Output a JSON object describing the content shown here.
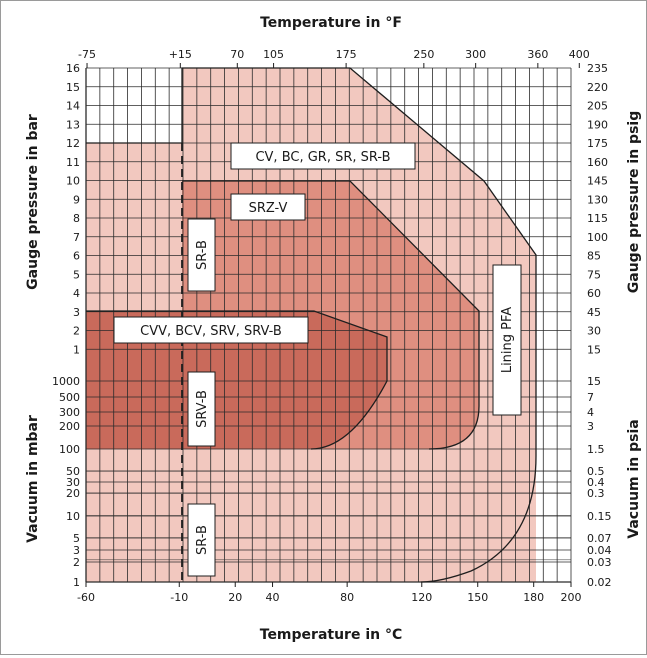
{
  "chart_data": {
    "type": "area",
    "top_axis_title": "Temperature in °F",
    "bottom_axis_title": "Temperature in °C",
    "left_upper_axis_title": "Gauge pressure in bar",
    "left_lower_axis_title": "Vacuum in mbar",
    "right_upper_axis_title": "Gauge pressure in psig",
    "right_lower_axis_title": "Vacuum in psia",
    "x_celsius_ticks": [
      "-60",
      "-10",
      "20",
      "40",
      "80",
      "120",
      "150",
      "180",
      "200"
    ],
    "x_fahrenheit_ticks": [
      "-75",
      "+15",
      "70",
      "105",
      "175",
      "250",
      "300",
      "360",
      "400"
    ],
    "y_bar_ticks": [
      "16",
      "15",
      "14",
      "13",
      "12",
      "11",
      "10",
      "9",
      "8",
      "7",
      "6",
      "5",
      "4",
      "3",
      "2",
      "1"
    ],
    "y_mbar_ticks": [
      "1000",
      "500",
      "300",
      "200",
      "100",
      "50",
      "30",
      "20",
      "10",
      "5",
      "3",
      "2",
      "1"
    ],
    "y_psig_ticks": [
      "235",
      "220",
      "205",
      "190",
      "175",
      "160",
      "145",
      "130",
      "115",
      "100",
      "85",
      "75",
      "60",
      "45",
      "30",
      "15"
    ],
    "y_psia_ticks": [
      "15",
      "7",
      "4",
      "3",
      "1.5",
      "0.5",
      "0.4",
      "0.3",
      "0.15",
      "0.07",
      "0.04",
      "0.03",
      "0.02"
    ],
    "grid": true,
    "colors": {
      "outer": "#f2c8bf",
      "mid": "#df8f80",
      "inner": "#c96a5b",
      "grid": "#2b2b2b",
      "dashed": "#2b2b2b"
    },
    "regions": [
      {
        "label": "CV, BC, GR, SR, SR-B",
        "shade": "outer",
        "outline_celsius_vs_pressure": [
          [
            -60,
            "1 mbar"
          ],
          [
            -60,
            "12 bar"
          ],
          [
            -10,
            "12 bar"
          ],
          [
            -10,
            "16 bar"
          ],
          [
            80,
            "16 bar"
          ],
          [
            150,
            "10 bar"
          ],
          [
            180,
            "6 bar"
          ],
          [
            180,
            "1 mbar"
          ]
        ]
      },
      {
        "label": "SRZ-V",
        "shade": "mid",
        "outline_celsius_vs_pressure": [
          [
            -10,
            "100 mbar"
          ],
          [
            -10,
            "10 bar"
          ],
          [
            80,
            "10 bar"
          ],
          [
            150,
            "3 bar"
          ],
          [
            150,
            "100 mbar"
          ]
        ]
      },
      {
        "label": "CVV, BCV, SRV, SRV-B",
        "shade": "inner",
        "outline_celsius_vs_pressure": [
          [
            -60,
            "100 mbar"
          ],
          [
            -60,
            "3 bar"
          ],
          [
            60,
            "3 bar"
          ],
          [
            100,
            "1.5 bar"
          ],
          [
            100,
            "1000 mbar"
          ],
          [
            60,
            "100 mbar"
          ]
        ]
      }
    ],
    "annotations": [
      "CV, BC, GR, SR, SR-B",
      "SRZ-V",
      "CVV, BCV, SRV, SRV-B",
      "SR-B",
      "SRV-B",
      "SR-B",
      "Lining PFA"
    ],
    "dashed_line_at_celsius": -10
  }
}
